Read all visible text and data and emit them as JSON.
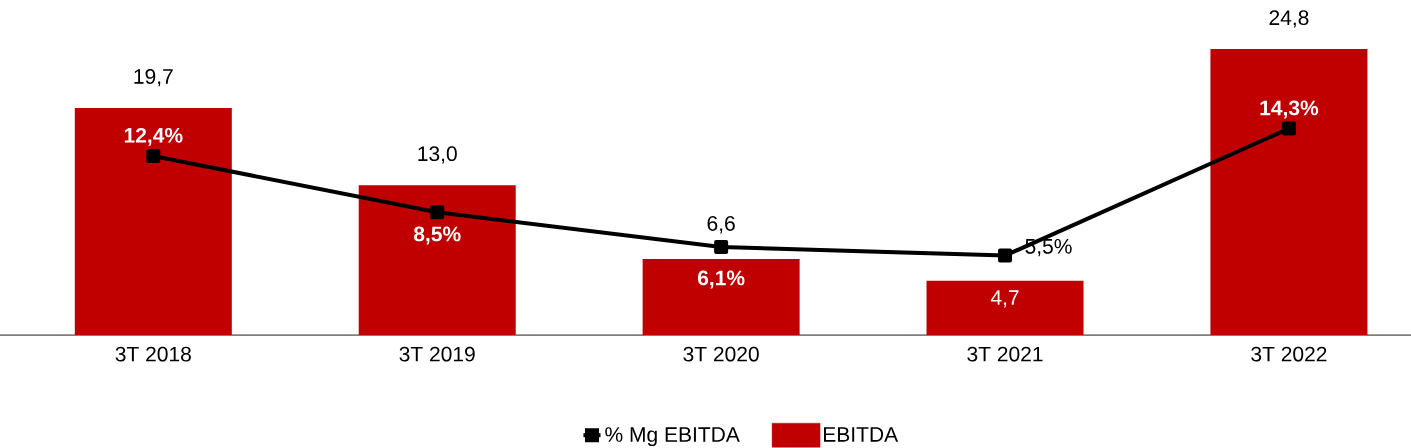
{
  "chart_data": {
    "type": "bar",
    "categories": [
      "3T 2018",
      "3T 2019",
      "3T 2020",
      "3T 2021",
      "3T 2022"
    ],
    "series": [
      {
        "name": "% Mg EBITDA",
        "type": "line",
        "axis": "y2",
        "color": "#000000",
        "values": [
          12.4,
          8.5,
          6.1,
          5.5,
          14.3
        ],
        "value_labels": [
          "12,4%",
          "8,5%",
          "6,1%",
          "5,5%",
          "14,3%"
        ]
      },
      {
        "name": "EBITDA",
        "color": "#c00000",
        "values": [
          19.7,
          13.0,
          6.6,
          4.7,
          24.8
        ],
        "value_labels": [
          "19,7",
          "13,0",
          "6,6",
          "4,7",
          "24,8"
        ]
      }
    ],
    "tick_labels": "x",
    "legend": "bottom",
    "marker": "square",
    "line_style": "solid"
  }
}
